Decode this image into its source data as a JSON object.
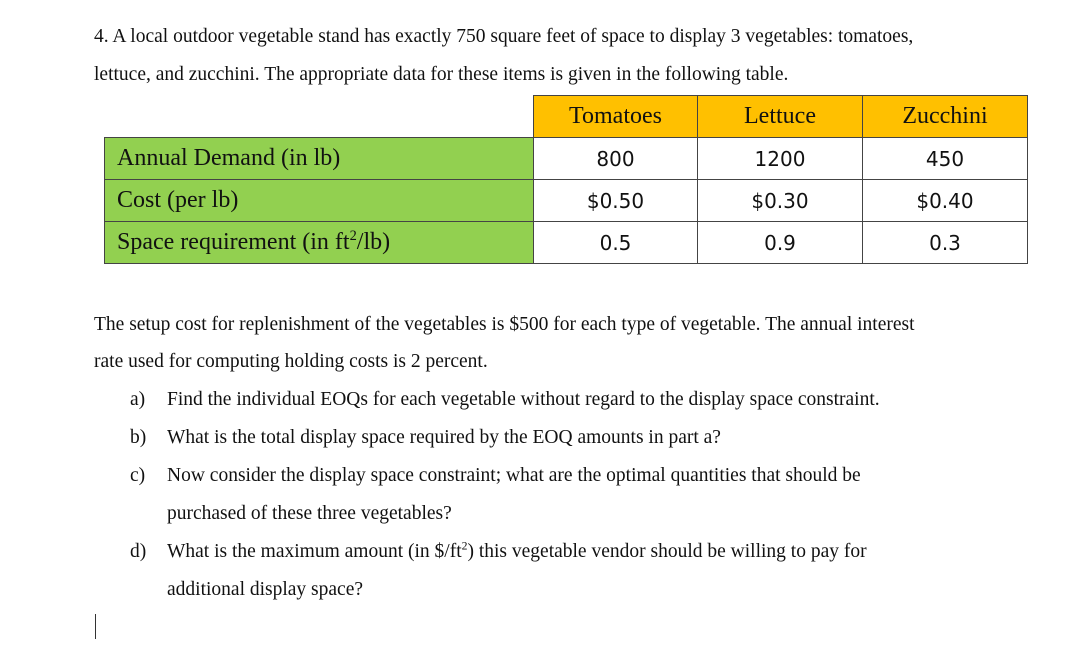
{
  "intro": {
    "line1": "4. A local outdoor vegetable stand has exactly 750 square feet of space to display 3 vegetables: tomatoes,",
    "line2": "lettuce, and zucchini. The appropriate data for these items is given in the following table."
  },
  "table": {
    "columns": [
      "Tomatoes",
      "Lettuce",
      "Zucchini"
    ],
    "rows": [
      {
        "label": "Annual Demand (in lb)",
        "values": [
          "800",
          "1200",
          "450"
        ]
      },
      {
        "label": "Cost (per lb)",
        "values": [
          "$0.50",
          "$0.30",
          "$0.40"
        ]
      },
      {
        "label_pre": "Space requirement (in ft",
        "label_sup": "2",
        "label_post": "/lb)",
        "values": [
          "0.5",
          "0.9",
          "0.3"
        ]
      }
    ],
    "colors": {
      "header_bg": "#ffc000",
      "row_label_bg": "#92d050"
    }
  },
  "setup": {
    "line1": "The setup cost for replenishment of the vegetables is $500 for each type of vegetable.  The annual interest",
    "line2": "rate used for computing holding costs is 2 percent."
  },
  "questions": [
    {
      "label": "a)",
      "text": "Find the individual EOQs for each vegetable without regard to the display space constraint."
    },
    {
      "label": "b)",
      "text": "What is the total display space required by the EOQ amounts in part a?"
    },
    {
      "label": "c)",
      "line1": "Now consider the display space constraint; what are the optimal quantities that should be",
      "line2": "purchased of these three vegetables?"
    },
    {
      "label": "d)",
      "line1_pre": "What is the maximum amount (in $/ft",
      "line1_sup": "2",
      "line1_post": ") this vegetable vendor should be willing to pay for",
      "line2": "additional display space?"
    }
  ]
}
